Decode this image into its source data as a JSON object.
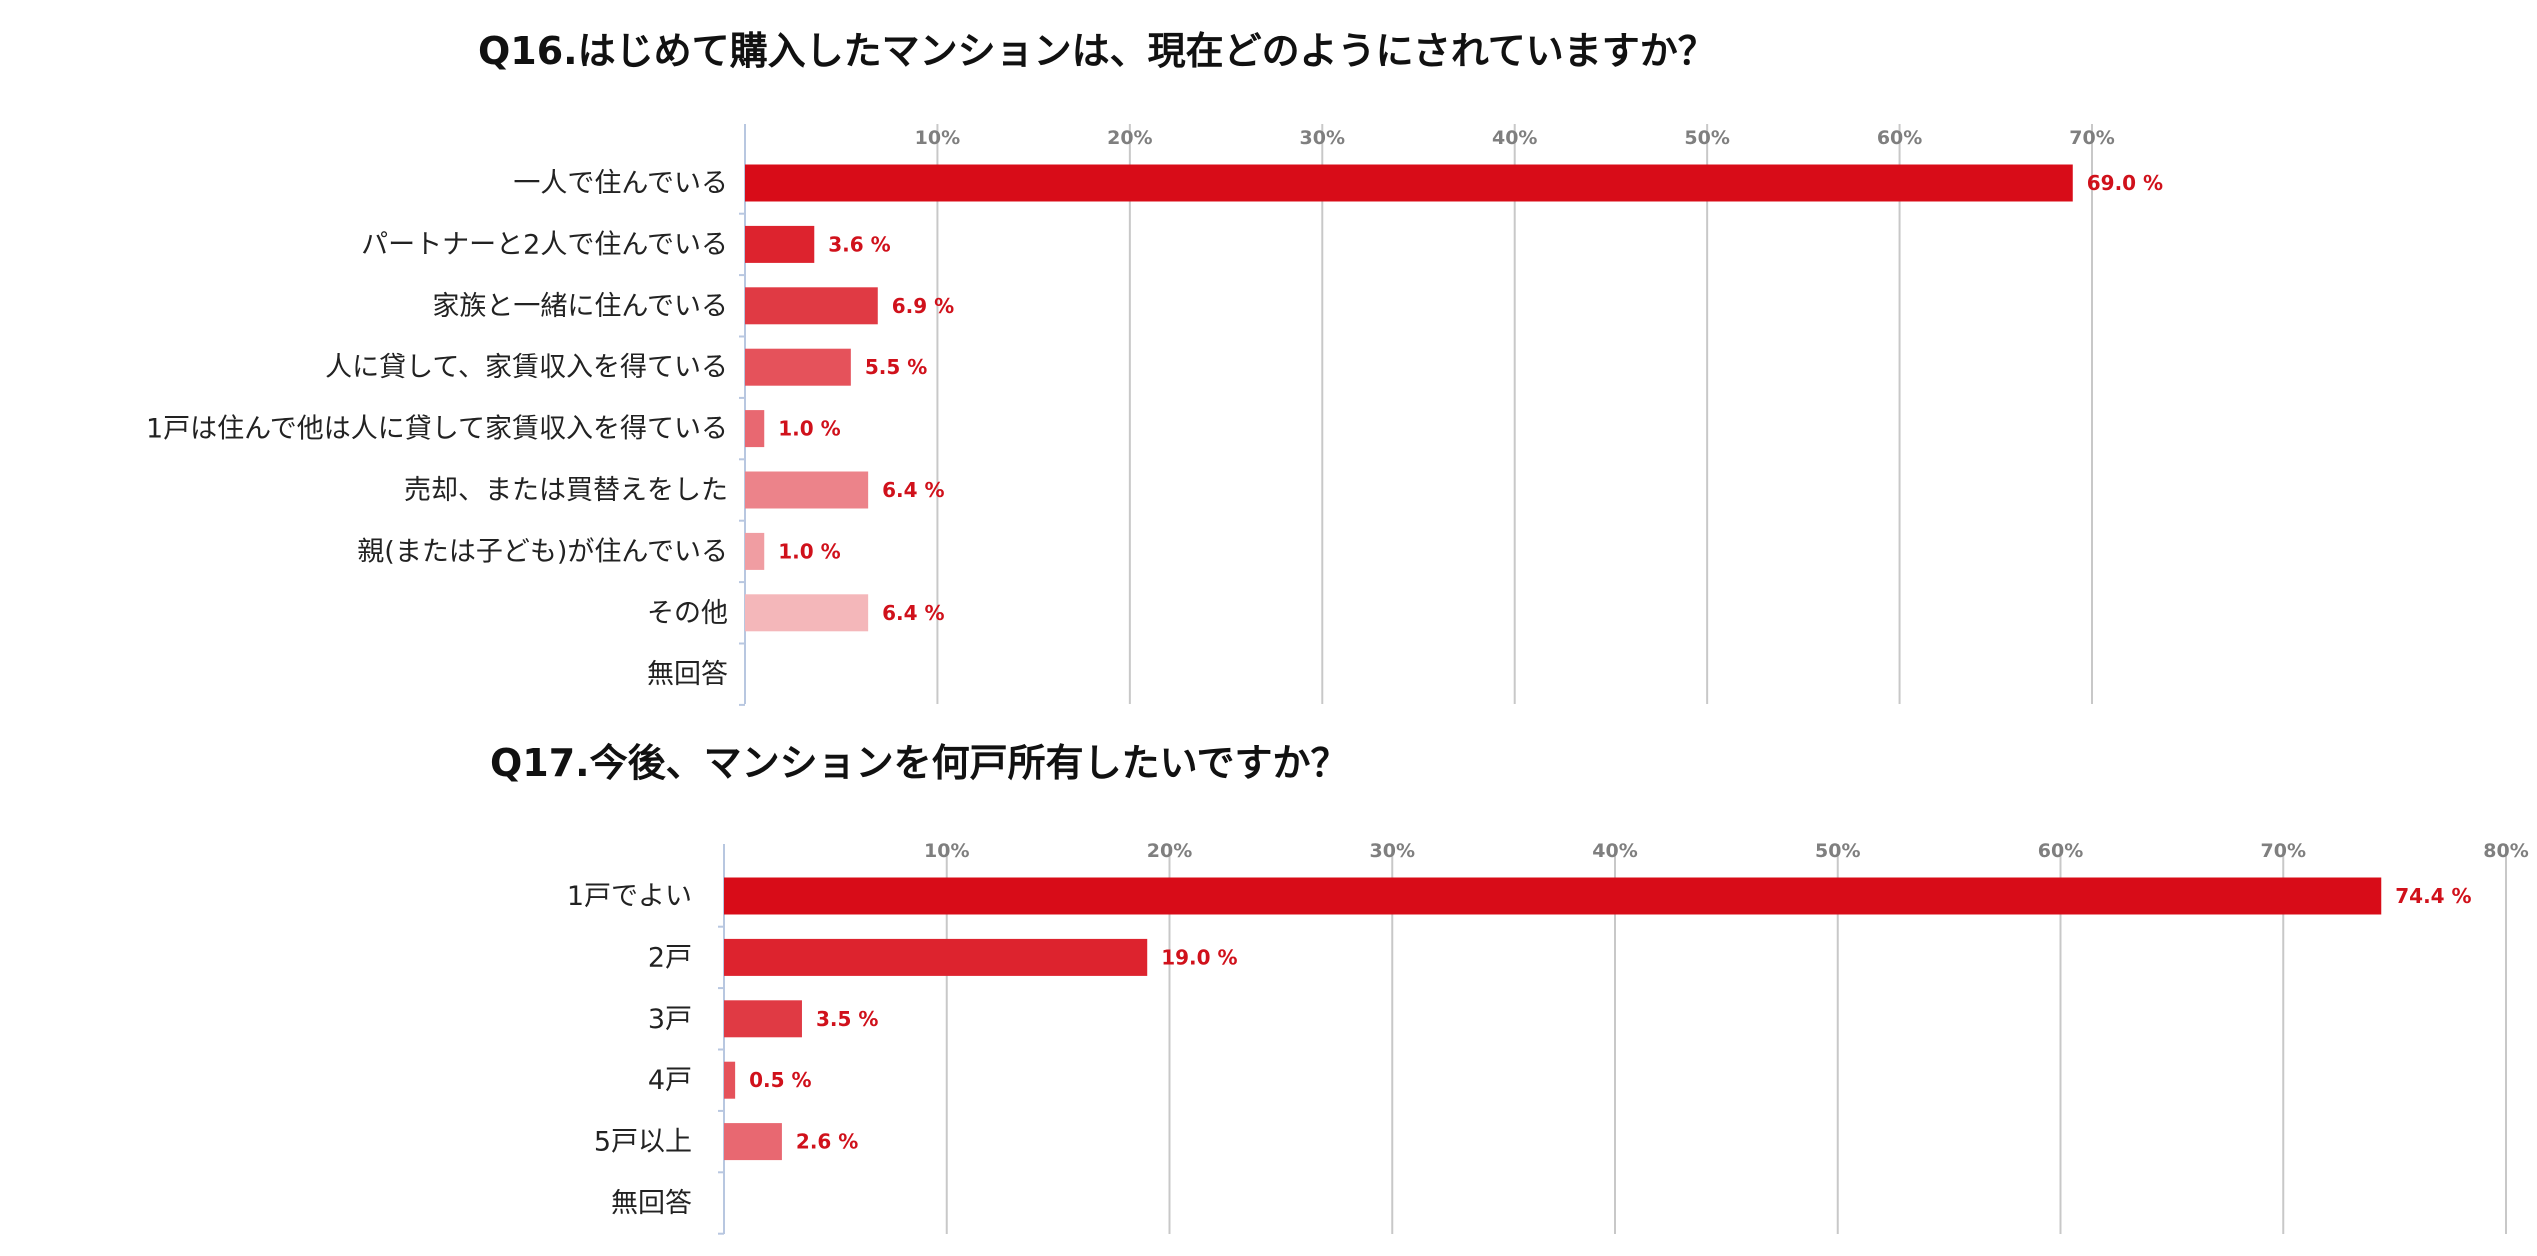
{
  "chart_data": [
    {
      "type": "bar",
      "orientation": "horizontal",
      "title": "Q16.はじめて購入したマンションは、現在どのようにされていますか？",
      "categories": [
        "一人で住んでいる",
        "パートナーと2人で住んでいる",
        "家族と一緒に住んでいる",
        "人に貸して、家賃収入を得ている",
        "1戸は住んで他は人に貸して家賃収入を得ている",
        "売却、または買替えをした",
        "親(または子ども)が住んでいる",
        "その他",
        "無回答"
      ],
      "values": [
        69.0,
        3.6,
        6.9,
        5.5,
        1.0,
        6.4,
        1.0,
        6.4,
        0
      ],
      "value_labels": [
        "69.0 %",
        "3.6 %",
        "6.9 %",
        "5.5 %",
        "1.0 %",
        "6.4 %",
        "1.0 %",
        "6.4 %",
        ""
      ],
      "bar_colors": [
        "#d80c18",
        "#dd232e",
        "#e03a44",
        "#e5525b",
        "#e86871",
        "#ec838a",
        "#f09da2",
        "#f4b7ba",
        "#f8d0d2"
      ],
      "xlim": [
        0,
        70
      ],
      "xticks": [
        10,
        20,
        30,
        40,
        50,
        60,
        70
      ],
      "tick_labels": [
        "10%",
        "20%",
        "30%",
        "40%",
        "50%",
        "60%",
        "70%"
      ],
      "axis_position": "top",
      "grid": true
    },
    {
      "type": "bar",
      "orientation": "horizontal",
      "title": "Q17.今後、マンションを何戸所有したいですか？",
      "categories": [
        "1戸でよい",
        "2戸",
        "3戸",
        "4戸",
        "5戸以上",
        "無回答"
      ],
      "values": [
        74.4,
        19.0,
        3.5,
        0.5,
        2.6,
        0
      ],
      "value_labels": [
        "74.4 %",
        "19.0 %",
        "3.5 %",
        "0.5 %",
        "2.6 %",
        ""
      ],
      "bar_colors": [
        "#d80c18",
        "#dd232e",
        "#e03a44",
        "#e5525b",
        "#e86871",
        "#ec838a"
      ],
      "xlim": [
        0,
        80
      ],
      "xticks": [
        10,
        20,
        30,
        40,
        50,
        60,
        70,
        80
      ],
      "tick_labels": [
        "10%",
        "20%",
        "30%",
        "40%",
        "50%",
        "60%",
        "70%",
        "80%"
      ],
      "axis_position": "top",
      "grid": true
    }
  ]
}
